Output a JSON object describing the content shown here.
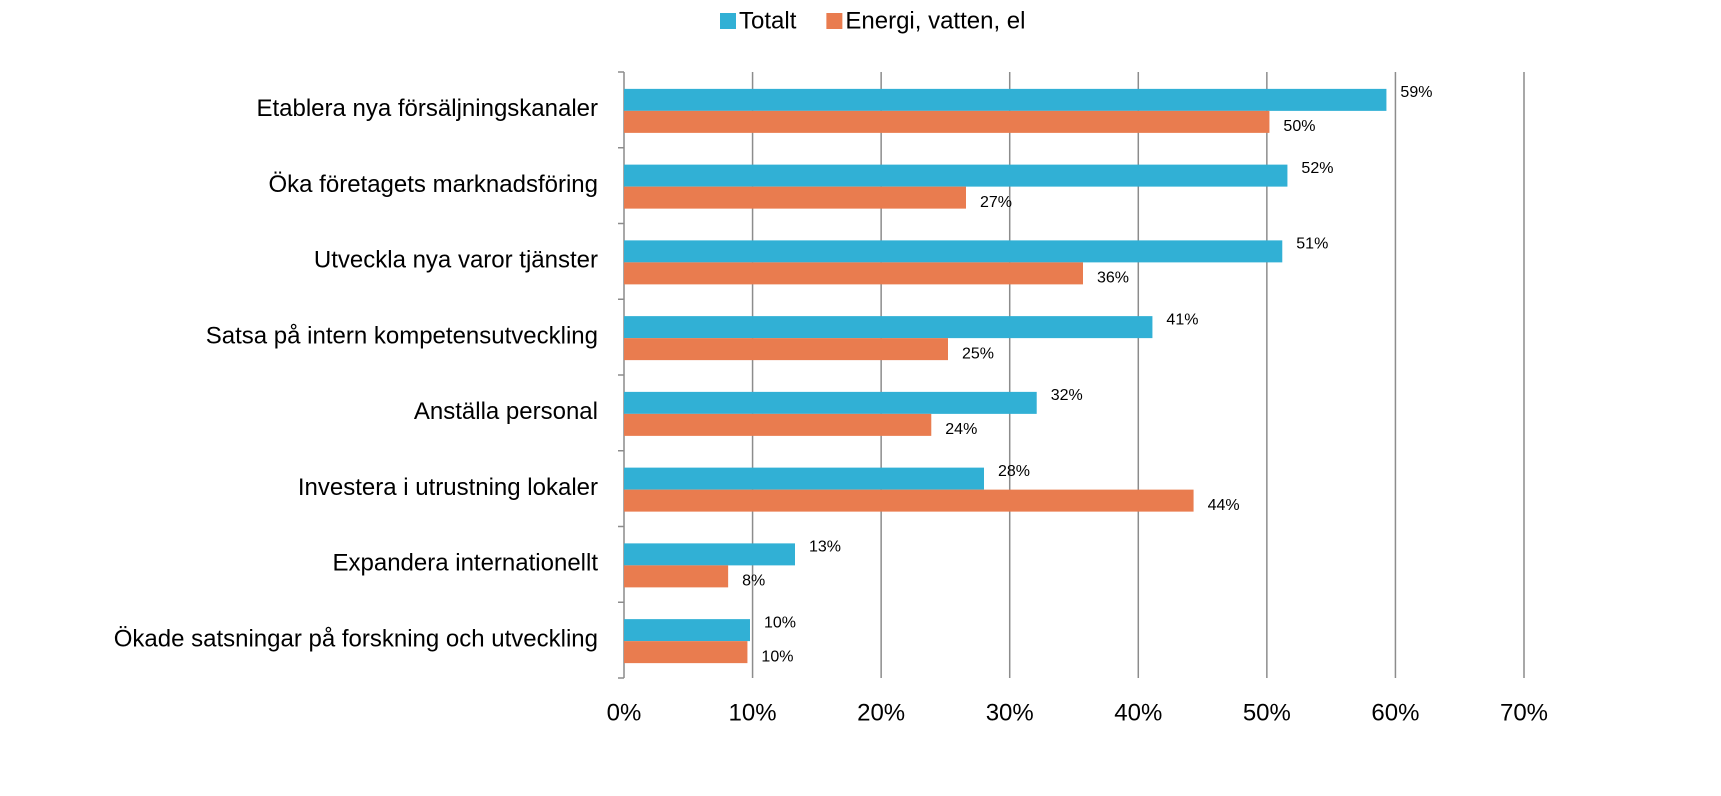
{
  "chart_data": {
    "type": "hbar",
    "categories": [
      "Etablera nya försäljningskanaler",
      "Öka företagets marknadsföring",
      "Utveckla nya varor tjänster",
      "Satsa på intern kompetensutveckling",
      "Anställa personal",
      "Investera i utrustning lokaler",
      "Expandera internationellt",
      "Ökade satsningar på forskning och utveckling"
    ],
    "series": [
      {
        "name": "Totalt",
        "color": "#31b0d5",
        "values": [
          59.3,
          51.6,
          51.2,
          41.1,
          32.1,
          28.0,
          13.3,
          9.8
        ],
        "value_labels": [
          "59%",
          "52%",
          "51%",
          "41%",
          "32%",
          "28%",
          "13%",
          "10%"
        ]
      },
      {
        "name": "Energi, vatten, el",
        "color": "#e97c4f",
        "values": [
          50.2,
          26.6,
          35.7,
          25.2,
          23.9,
          44.3,
          8.1,
          9.6
        ],
        "value_labels": [
          "50%",
          "27%",
          "36%",
          "25%",
          "24%",
          "44%",
          "8%",
          "10%"
        ]
      }
    ],
    "xlim": [
      0,
      70
    ],
    "xticks": [
      {
        "value": 0,
        "label": "0%"
      },
      {
        "value": 10,
        "label": "10%"
      },
      {
        "value": 20,
        "label": "20%"
      },
      {
        "value": 30,
        "label": "30%"
      },
      {
        "value": 40,
        "label": "40%"
      },
      {
        "value": 50,
        "label": "50%"
      },
      {
        "value": 60,
        "label": "60%"
      },
      {
        "value": 70,
        "label": "70%"
      }
    ],
    "grid": true,
    "legend": "top"
  }
}
